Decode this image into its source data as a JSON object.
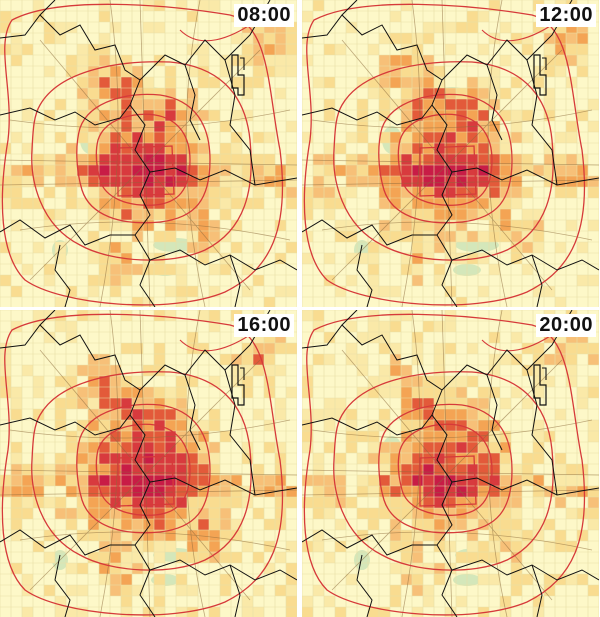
{
  "panels": [
    {
      "time": "08:00",
      "intensity": 0.92
    },
    {
      "time": "12:00",
      "intensity": 0.9
    },
    {
      "time": "16:00",
      "intensity": 1.0
    },
    {
      "time": "20:00",
      "intensity": 0.82
    }
  ],
  "colors": {
    "background": "#fdf8c8",
    "grid": "#e8dfa6",
    "low": "#f9dc90",
    "mid": "#f4a454",
    "high": "#e35a3a",
    "peak": "#c81c46",
    "district_border": "#111111",
    "ring_road": "#d63a3a",
    "minor_road": "#8b6a3c",
    "park": "#b9dcb0"
  },
  "legend": {
    "present": false
  }
}
